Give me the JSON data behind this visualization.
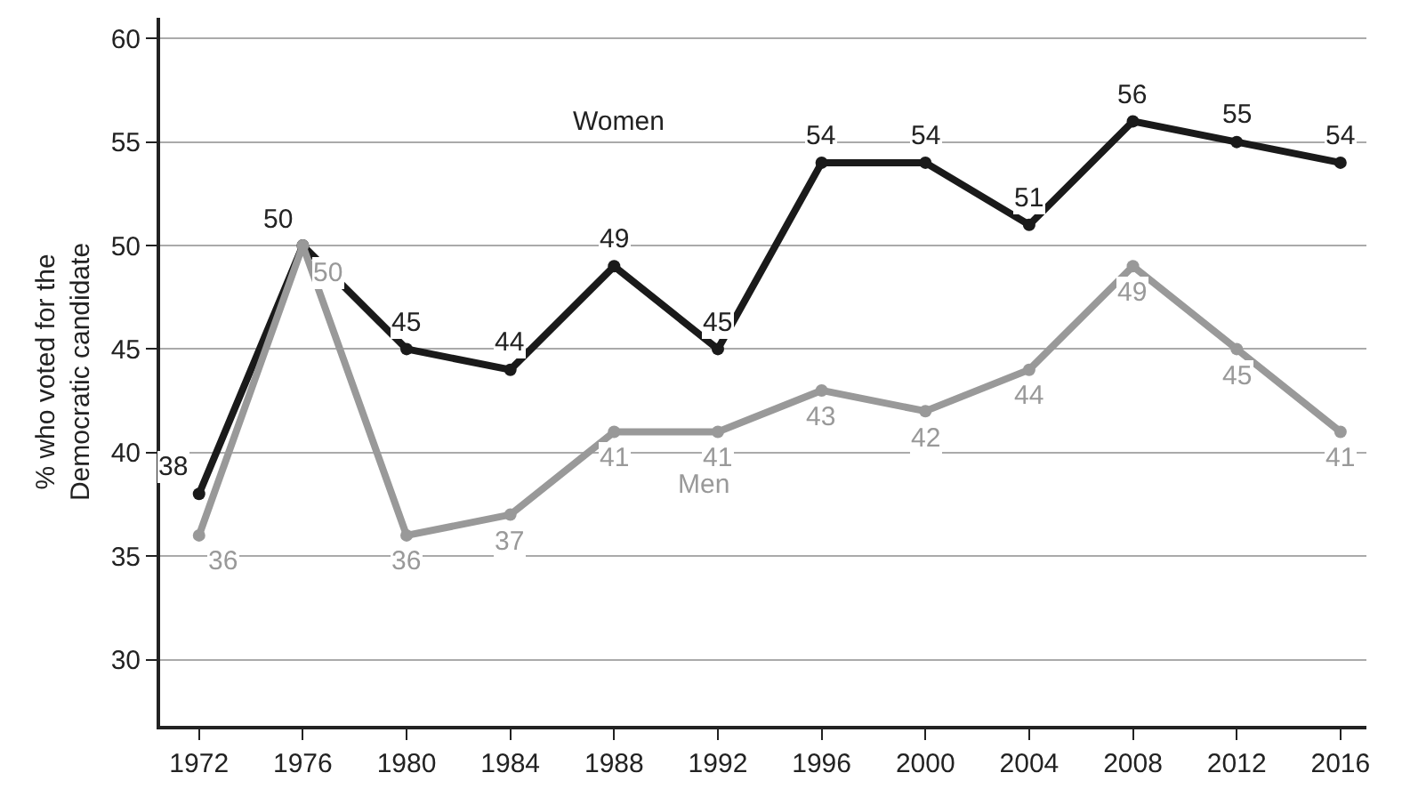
{
  "chart_data": {
    "type": "line",
    "ylabel": "% who voted for the\nDemocratic candidate",
    "x": [
      1972,
      1976,
      1980,
      1984,
      1988,
      1992,
      1996,
      2000,
      2004,
      2008,
      2012,
      2016
    ],
    "series": [
      {
        "name": "Women",
        "color": "#1a1a1a",
        "values": [
          38,
          50,
          45,
          44,
          49,
          45,
          54,
          54,
          51,
          56,
          55,
          54
        ]
      },
      {
        "name": "Men",
        "color": "#999999",
        "values": [
          36,
          50,
          36,
          37,
          41,
          41,
          43,
          42,
          44,
          49,
          45,
          41
        ]
      }
    ],
    "xlim": [
      1970.5,
      2017
    ],
    "xticks": [
      1972,
      1976,
      1980,
      1984,
      1988,
      1992,
      1996,
      2000,
      2004,
      2008,
      2012,
      2016
    ],
    "ylim": [
      26.8,
      61
    ],
    "yticks": [
      30,
      35,
      40,
      45,
      50,
      55,
      60
    ],
    "grid": "y",
    "legend": false,
    "marker": "circle",
    "line_style": "solid",
    "data_labels": true
  }
}
